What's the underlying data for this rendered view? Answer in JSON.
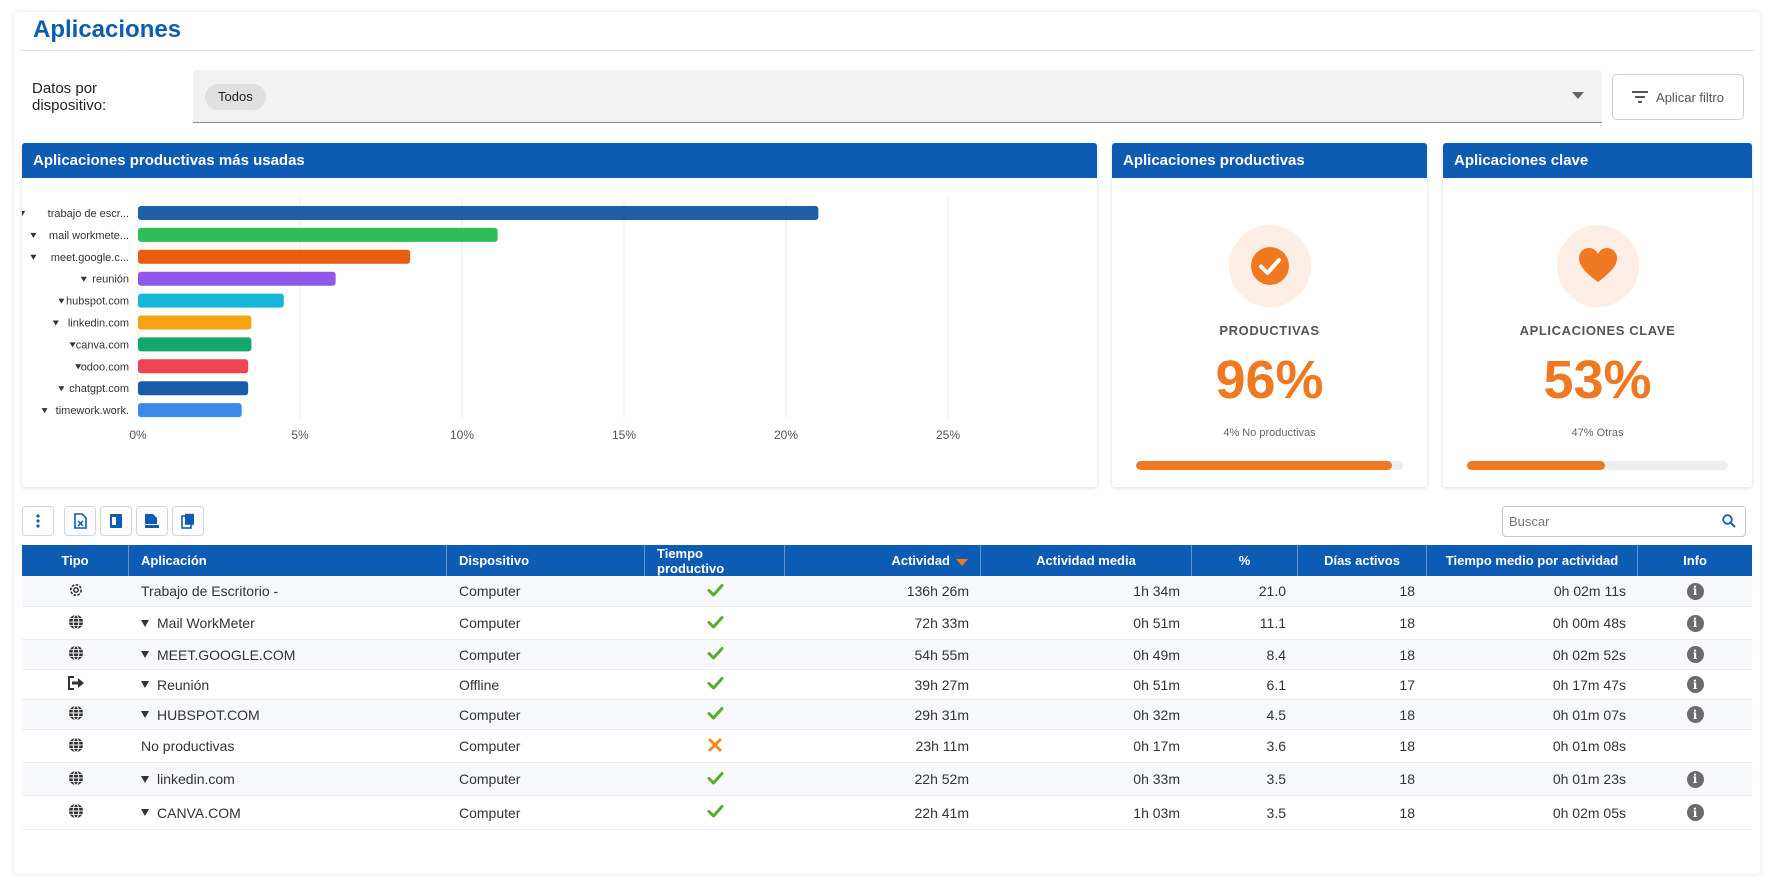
{
  "page": {
    "title": "Aplicaciones"
  },
  "filter": {
    "label": "Datos por dispositivo:",
    "selected_chip": "Todos",
    "apply_label": "Aplicar filtro"
  },
  "panels": {
    "top_apps": {
      "title": "Aplicaciones productivas más usadas"
    },
    "productive": {
      "title": "Aplicaciones productivas",
      "label": "PRODUCTIVAS",
      "value": "96%",
      "sub": "4% No productivas",
      "fraction": 0.96,
      "icon": "check-icon"
    },
    "key": {
      "title": "Aplicaciones clave",
      "label": "APLICACIONES CLAVE",
      "value": "53%",
      "sub": "47% Otras",
      "fraction": 0.53,
      "icon": "heart-icon"
    }
  },
  "chart_data": {
    "type": "bar",
    "orientation": "horizontal",
    "categories": [
      "trabajo de escr...",
      "mail workmete...",
      "meet.google.c...",
      "reunión",
      "hubspot.com",
      "linkedin.com",
      "canva.com",
      "odoo.com",
      "chatgpt.com",
      "timework.work."
    ],
    "values": [
      21.0,
      11.1,
      8.4,
      6.1,
      4.5,
      3.5,
      3.5,
      3.4,
      3.4,
      3.2
    ],
    "colors": [
      "#1f5fa8",
      "#2cbf58",
      "#e85d10",
      "#8f57e6",
      "#16b6d8",
      "#f5a313",
      "#14a86a",
      "#ef4454",
      "#165caa",
      "#3b8aea"
    ],
    "xlim": [
      0,
      25
    ],
    "x_ticks": [
      "0%",
      "5%",
      "10%",
      "15%",
      "20%",
      "25%"
    ],
    "grid": true
  },
  "search": {
    "placeholder": "Buscar"
  },
  "table": {
    "headers": [
      "Tipo",
      "Aplicación",
      "Dispositivo",
      "Tiempo productivo",
      "Actividad",
      "Actividad media",
      "%",
      "Días activos",
      "Tiempo medio por actividad",
      "Info"
    ],
    "rows": [
      {
        "type_icon": "gear-icon",
        "expandable": false,
        "app": "Trabajo de Escritorio -",
        "device": "Computer",
        "productive": true,
        "activity": "136h 26m",
        "avg": "1h 34m",
        "pct": "21.0",
        "days": "18",
        "avg_per": "0h 02m 11s",
        "info": true
      },
      {
        "type_icon": "globe-icon",
        "expandable": true,
        "app": "Mail WorkMeter",
        "device": "Computer",
        "productive": true,
        "activity": "72h 33m",
        "avg": "0h 51m",
        "pct": "11.1",
        "days": "18",
        "avg_per": "0h 00m 48s",
        "info": true
      },
      {
        "type_icon": "globe-icon",
        "expandable": true,
        "app": "MEET.GOOGLE.COM",
        "device": "Computer",
        "productive": true,
        "activity": "54h 55m",
        "avg": "0h 49m",
        "pct": "8.4",
        "days": "18",
        "avg_per": "0h 02m 52s",
        "info": true
      },
      {
        "type_icon": "logout-icon",
        "expandable": true,
        "app": "Reunión",
        "device": "Offline",
        "productive": true,
        "activity": "39h 27m",
        "avg": "0h 51m",
        "pct": "6.1",
        "days": "17",
        "avg_per": "0h 17m 47s",
        "info": true
      },
      {
        "type_icon": "globe-icon",
        "expandable": true,
        "app": "HUBSPOT.COM",
        "device": "Computer",
        "productive": true,
        "activity": "29h 31m",
        "avg": "0h 32m",
        "pct": "4.5",
        "days": "18",
        "avg_per": "0h 01m 07s",
        "info": true
      },
      {
        "type_icon": "globe-icon",
        "expandable": false,
        "app": "No productivas",
        "device": "Computer",
        "productive": false,
        "activity": "23h 11m",
        "avg": "0h 17m",
        "pct": "3.6",
        "days": "18",
        "avg_per": "0h 01m 08s",
        "info": false
      },
      {
        "type_icon": "globe-icon",
        "expandable": true,
        "app": "linkedin.com",
        "device": "Computer",
        "productive": true,
        "activity": "22h 52m",
        "avg": "0h 33m",
        "pct": "3.5",
        "days": "18",
        "avg_per": "0h 01m 23s",
        "info": true
      },
      {
        "type_icon": "globe-icon",
        "expandable": true,
        "app": "CANVA.COM",
        "device": "Computer",
        "productive": true,
        "activity": "22h 41m",
        "avg": "1h 03m",
        "pct": "3.5",
        "days": "18",
        "avg_per": "0h 02m 05s",
        "info": true
      }
    ]
  },
  "colors": {
    "brand": "#0d5bb3",
    "accent": "#f07820",
    "check": "#5aac2e",
    "cross": "#f08a1c"
  }
}
